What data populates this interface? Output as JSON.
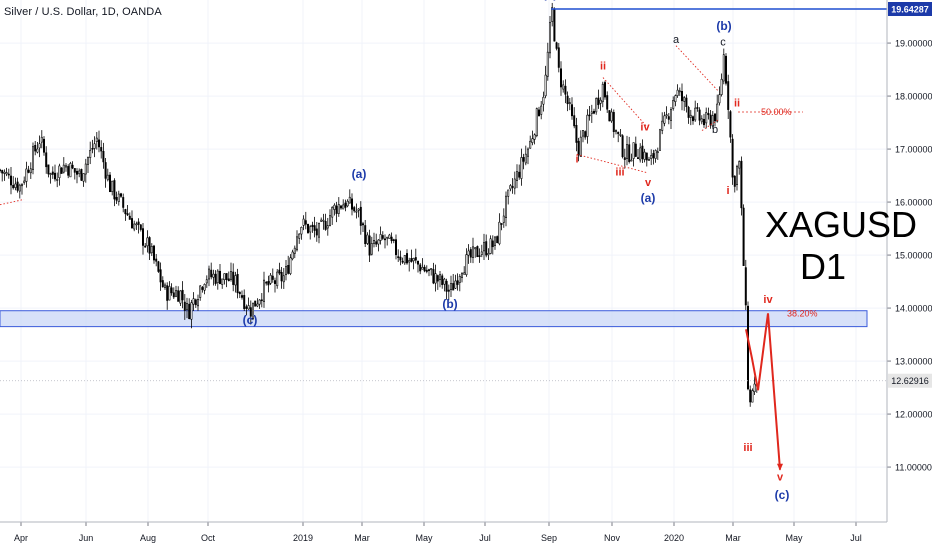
{
  "header": {
    "title": "Silver / U.S. Dollar, 1D, OANDA"
  },
  "symbol_overlay": {
    "line1": "XAGUSD",
    "line2": "D1"
  },
  "colors": {
    "candle": "#000000",
    "wave_blue": "#1c3aa9",
    "wave_red": "#e0271d",
    "label_black": "#131722",
    "support_zone_fill": "#c9d7f7",
    "support_zone_border": "#3b5bdb",
    "resistance_line": "#1f4fd0",
    "price_badge_bg": "#1c3aa9",
    "current_badge_bg": "#e6e6e6",
    "grid": "#f0f3fa"
  },
  "chart_data": {
    "type": "candlestick",
    "title": "Silver / U.S. Dollar, 1D, OANDA",
    "xlabel": "",
    "ylabel": "",
    "ylim": [
      10.25,
      20.1
    ],
    "x_ticks": [
      "Apr",
      "Jun",
      "Aug",
      "Oct",
      "2019",
      "Mar",
      "May",
      "Jul",
      "Sep",
      "Nov",
      "2020",
      "Mar",
      "May",
      "Jul"
    ],
    "y_ticks": [
      "20.00000",
      "19.00000",
      "18.00000",
      "17.00000",
      "16.00000",
      "15.00000",
      "14.00000",
      "13.00000",
      "12.00000",
      "11.00000"
    ],
    "price_markers": {
      "resistance": "19.64287",
      "current": "12.62916"
    },
    "path_points": [
      [
        0,
        16.6
      ],
      [
        20,
        16.3
      ],
      [
        40,
        17.2
      ],
      [
        50,
        16.5
      ],
      [
        65,
        16.7
      ],
      [
        80,
        16.5
      ],
      [
        97,
        17.2
      ],
      [
        110,
        16.3
      ],
      [
        130,
        15.7
      ],
      [
        150,
        15.1
      ],
      [
        165,
        14.3
      ],
      [
        180,
        14.3
      ],
      [
        188,
        13.92
      ],
      [
        205,
        14.6
      ],
      [
        220,
        14.6
      ],
      [
        235,
        14.5
      ],
      [
        250,
        13.95
      ],
      [
        265,
        14.4
      ],
      [
        285,
        14.6
      ],
      [
        300,
        15.6
      ],
      [
        318,
        15.4
      ],
      [
        335,
        15.9
      ],
      [
        345,
        16.0
      ],
      [
        358,
        15.8
      ],
      [
        370,
        15.1
      ],
      [
        385,
        15.3
      ],
      [
        400,
        15.0
      ],
      [
        420,
        14.8
      ],
      [
        440,
        14.5
      ],
      [
        450,
        14.3
      ],
      [
        462,
        14.8
      ],
      [
        480,
        15.1
      ],
      [
        495,
        15.2
      ],
      [
        505,
        15.9
      ],
      [
        515,
        16.4
      ],
      [
        530,
        17.1
      ],
      [
        545,
        18.2
      ],
      [
        552,
        19.64
      ],
      [
        558,
        18.5
      ],
      [
        570,
        17.7
      ],
      [
        578,
        17.0
      ],
      [
        590,
        17.6
      ],
      [
        603,
        18.2
      ],
      [
        612,
        17.5
      ],
      [
        625,
        16.9
      ],
      [
        640,
        17.0
      ],
      [
        650,
        16.7
      ],
      [
        663,
        17.4
      ],
      [
        676,
        18.1
      ],
      [
        690,
        17.7
      ],
      [
        705,
        17.5
      ],
      [
        718,
        17.7
      ],
      [
        724,
        18.8
      ],
      [
        729,
        17.7
      ],
      [
        733,
        16.3
      ],
      [
        739,
        16.8
      ],
      [
        746,
        13.8
      ],
      [
        749,
        12.0
      ],
      [
        753,
        12.6
      ],
      [
        757,
        12.4
      ]
    ],
    "annotations": [
      {
        "label": "(c)",
        "x": 550,
        "y": 19.85,
        "color": "blue"
      },
      {
        "label": "(b)",
        "x": 724,
        "y": 19.25,
        "color": "blue"
      },
      {
        "label": "(a)",
        "x": 359,
        "y": 16.45,
        "color": "blue"
      },
      {
        "label": "(b)",
        "x": 450,
        "y": 14.0,
        "color": "blue"
      },
      {
        "label": "(c)",
        "x": 250,
        "y": 13.7,
        "color": "blue"
      },
      {
        "label": "(a)",
        "x": 648,
        "y": 16.0,
        "color": "blue"
      },
      {
        "label": "(c)",
        "x": 782,
        "y": 10.4,
        "color": "blue"
      },
      {
        "label": "i",
        "x": 577,
        "y": 16.75,
        "color": "red"
      },
      {
        "label": "ii",
        "x": 603,
        "y": 18.5,
        "color": "red"
      },
      {
        "label": "iii",
        "x": 620,
        "y": 16.5,
        "color": "red"
      },
      {
        "label": "iv",
        "x": 645,
        "y": 17.35,
        "color": "red"
      },
      {
        "label": "v",
        "x": 648,
        "y": 16.3,
        "color": "red"
      },
      {
        "label": "ii",
        "x": 737,
        "y": 17.8,
        "color": "red"
      },
      {
        "label": "i",
        "x": 728,
        "y": 16.15,
        "color": "red"
      },
      {
        "label": "iv",
        "x": 768,
        "y": 14.1,
        "color": "red"
      },
      {
        "label": "iii",
        "x": 748,
        "y": 11.3,
        "color": "red"
      },
      {
        "label": "v",
        "x": 780,
        "y": 10.75,
        "color": "red"
      },
      {
        "label": "a",
        "x": 676,
        "y": 19.0,
        "color": "black"
      },
      {
        "label": "b",
        "x": 715,
        "y": 17.3,
        "color": "black"
      },
      {
        "label": "c",
        "x": 723,
        "y": 18.95,
        "color": "black"
      }
    ],
    "fib_levels": [
      {
        "label": "50.00%",
        "value": 17.7
      },
      {
        "label": "38.20%",
        "value": 13.9
      }
    ],
    "support_zone": [
      13.65,
      13.95
    ],
    "projection_path": [
      [
        746,
        13.6
      ],
      [
        752,
        13.05
      ],
      [
        758,
        12.45
      ],
      [
        768,
        13.9
      ],
      [
        780,
        10.95
      ]
    ]
  }
}
